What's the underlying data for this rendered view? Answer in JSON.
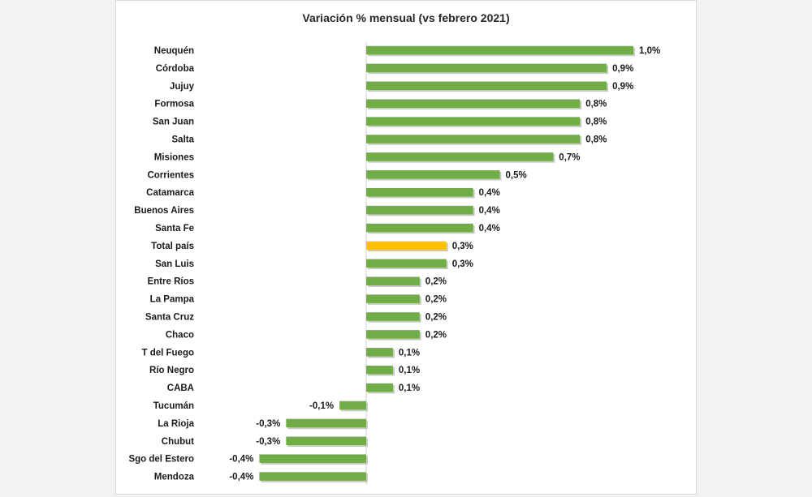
{
  "chart_data": {
    "type": "bar",
    "orientation": "horizontal",
    "title": "Variación % mensual (vs febrero 2021)",
    "unit": "%",
    "categories": [
      "Neuquén",
      "Córdoba",
      "Jujuy",
      "Formosa",
      "San Juan",
      "Salta",
      "Misiones",
      "Corrientes",
      "Catamarca",
      "Buenos Aires",
      "Santa Fe",
      "Total país",
      "San Luis",
      "Entre Ríos",
      "La Pampa",
      "Santa Cruz",
      "Chaco",
      "T del Fuego",
      "Río Negro",
      "CABA",
      "Tucumán",
      "La Rioja",
      "Chubut",
      "Sgo del Estero",
      "Mendoza"
    ],
    "values": [
      1.0,
      0.9,
      0.9,
      0.8,
      0.8,
      0.8,
      0.7,
      0.5,
      0.4,
      0.4,
      0.4,
      0.3,
      0.3,
      0.2,
      0.2,
      0.2,
      0.2,
      0.1,
      0.1,
      0.1,
      -0.1,
      -0.3,
      -0.3,
      -0.4,
      -0.4
    ],
    "labels": [
      "1,0%",
      "0,9%",
      "0,9%",
      "0,8%",
      "0,8%",
      "0,8%",
      "0,7%",
      "0,5%",
      "0,4%",
      "0,4%",
      "0,4%",
      "0,3%",
      "0,3%",
      "0,2%",
      "0,2%",
      "0,2%",
      "0,2%",
      "0,1%",
      "0,1%",
      "0,1%",
      "-0,1%",
      "-0,3%",
      "-0,3%",
      "-0,4%",
      "-0,4%"
    ],
    "xlim": [
      -0.4,
      1.0
    ],
    "highlight_category": "Total país",
    "colors": {
      "bar": "#70ad47",
      "highlight": "#ffc000"
    }
  }
}
